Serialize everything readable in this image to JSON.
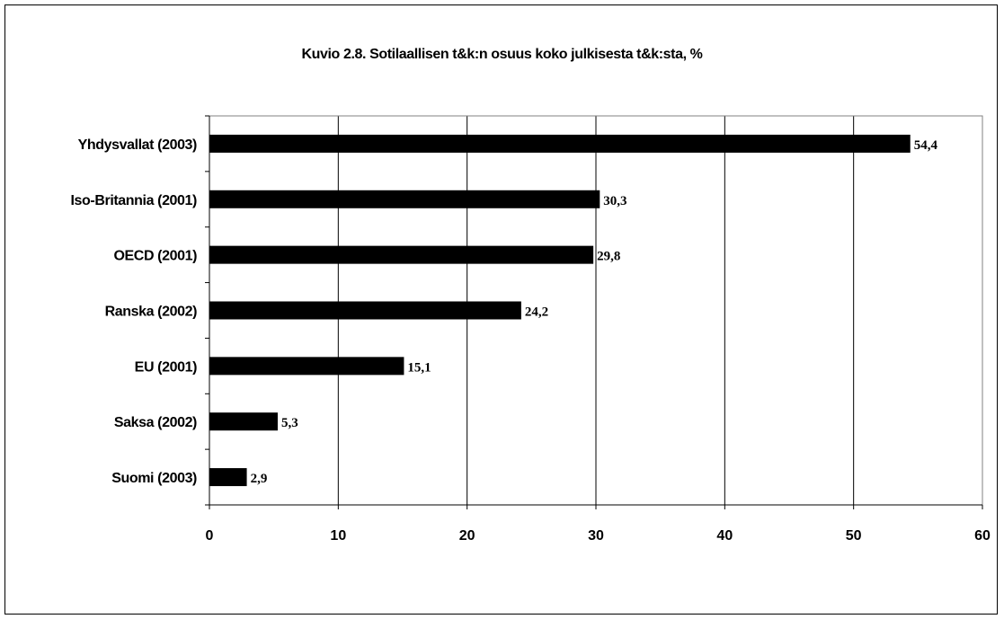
{
  "chart_data": {
    "type": "bar",
    "orientation": "horizontal",
    "title": "Kuvio 2.8. Sotilaallisen t&k:n osuus koko julkisesta t&k:sta, %",
    "categories": [
      "Yhdysvallat (2003)",
      "Iso-Britannia (2001)",
      "OECD (2001)",
      "Ranska (2002)",
      "EU (2001)",
      "Saksa (2002)",
      "Suomi (2003)"
    ],
    "values": [
      54.4,
      30.3,
      29.8,
      24.2,
      15.1,
      5.3,
      2.9
    ],
    "data_labels": [
      "54,4",
      "30,3",
      "29,8",
      "24,2",
      "15,1",
      "5,3",
      "2,9"
    ],
    "xlim": [
      0,
      60
    ],
    "xticks": [
      0,
      10,
      20,
      30,
      40,
      50,
      60
    ],
    "xlabel": "",
    "ylabel": "",
    "grid": "vertical",
    "legend": "none",
    "bar_color": "#000000"
  }
}
